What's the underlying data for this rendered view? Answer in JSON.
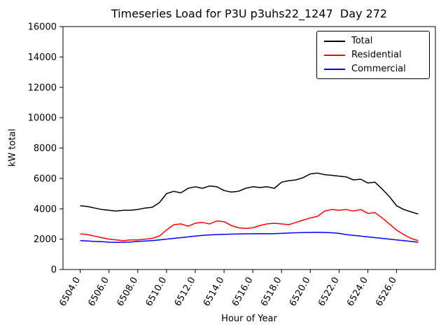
{
  "figure": {
    "title": "Timeseries Load for P3U p3uhs22_1247  Day 272",
    "xlabel": "Hour of Year",
    "ylabel": "kW total"
  },
  "chart_data": {
    "type": "line",
    "title": "Timeseries Load for P3U p3uhs22_1247  Day 272",
    "xlabel": "Hour of Year",
    "ylabel": "kW total",
    "grid": false,
    "legend_position": "upper right",
    "xlim": [
      6502.8,
      6528.7
    ],
    "ylim": [
      0,
      16000
    ],
    "yticks": [
      0,
      2000,
      4000,
      6000,
      8000,
      10000,
      12000,
      14000,
      16000
    ],
    "xticks": [
      6504,
      6506,
      6508,
      6510,
      6512,
      6514,
      6516,
      6518,
      6520,
      6522,
      6524,
      6526
    ],
    "xtick_labels": [
      "6504.0",
      "6506.0",
      "6508.0",
      "6510.0",
      "6512.0",
      "6514.0",
      "6516.0",
      "6518.0",
      "6520.0",
      "6522.0",
      "6524.0",
      "6526.0"
    ],
    "x": [
      6504,
      6504.5,
      6505,
      6505.5,
      6506,
      6506.5,
      6507,
      6507.5,
      6508,
      6508.5,
      6509,
      6509.5,
      6510,
      6510.5,
      6511,
      6511.5,
      6512,
      6512.5,
      6513,
      6513.5,
      6514,
      6514.5,
      6515,
      6515.5,
      6516,
      6516.5,
      6517,
      6517.5,
      6518,
      6518.5,
      6519,
      6519.5,
      6520,
      6520.5,
      6521,
      6521.5,
      6522,
      6522.5,
      6523,
      6523.5,
      6524,
      6524.5,
      6525,
      6525.5,
      6526,
      6526.5,
      6527,
      6527.5
    ],
    "series": [
      {
        "name": "Total",
        "color": "#000000",
        "values": [
          4200,
          4150,
          4050,
          3950,
          3900,
          3850,
          3900,
          3900,
          3950,
          4050,
          4100,
          4400,
          5000,
          5150,
          5050,
          5350,
          5450,
          5350,
          5500,
          5450,
          5200,
          5100,
          5150,
          5350,
          5450,
          5400,
          5450,
          5350,
          5750,
          5850,
          5900,
          6050,
          6300,
          6350,
          6250,
          6200,
          6150,
          6100,
          5900,
          5950,
          5700,
          5750,
          5300,
          4800,
          4200,
          3950,
          3800,
          3650
        ]
      },
      {
        "name": "Residential",
        "color": "#ff0000",
        "values": [
          2350,
          2300,
          2200,
          2100,
          2000,
          1950,
          1900,
          1950,
          1950,
          2000,
          2050,
          2200,
          2600,
          2950,
          3000,
          2850,
          3050,
          3100,
          3000,
          3200,
          3150,
          2900,
          2750,
          2700,
          2750,
          2900,
          3000,
          3050,
          3000,
          2950,
          3100,
          3250,
          3400,
          3500,
          3850,
          3950,
          3900,
          3950,
          3850,
          3950,
          3700,
          3750,
          3400,
          3000,
          2600,
          2300,
          2050,
          1900
        ]
      },
      {
        "name": "Commercial",
        "color": "#0000ff",
        "values": [
          1900,
          1880,
          1850,
          1830,
          1800,
          1790,
          1800,
          1810,
          1850,
          1870,
          1900,
          1950,
          2000,
          2050,
          2100,
          2150,
          2200,
          2250,
          2280,
          2300,
          2320,
          2330,
          2340,
          2350,
          2350,
          2360,
          2350,
          2360,
          2380,
          2400,
          2420,
          2430,
          2440,
          2450,
          2440,
          2420,
          2380,
          2300,
          2250,
          2200,
          2150,
          2100,
          2050,
          2000,
          1950,
          1900,
          1850,
          1800
        ]
      }
    ]
  }
}
